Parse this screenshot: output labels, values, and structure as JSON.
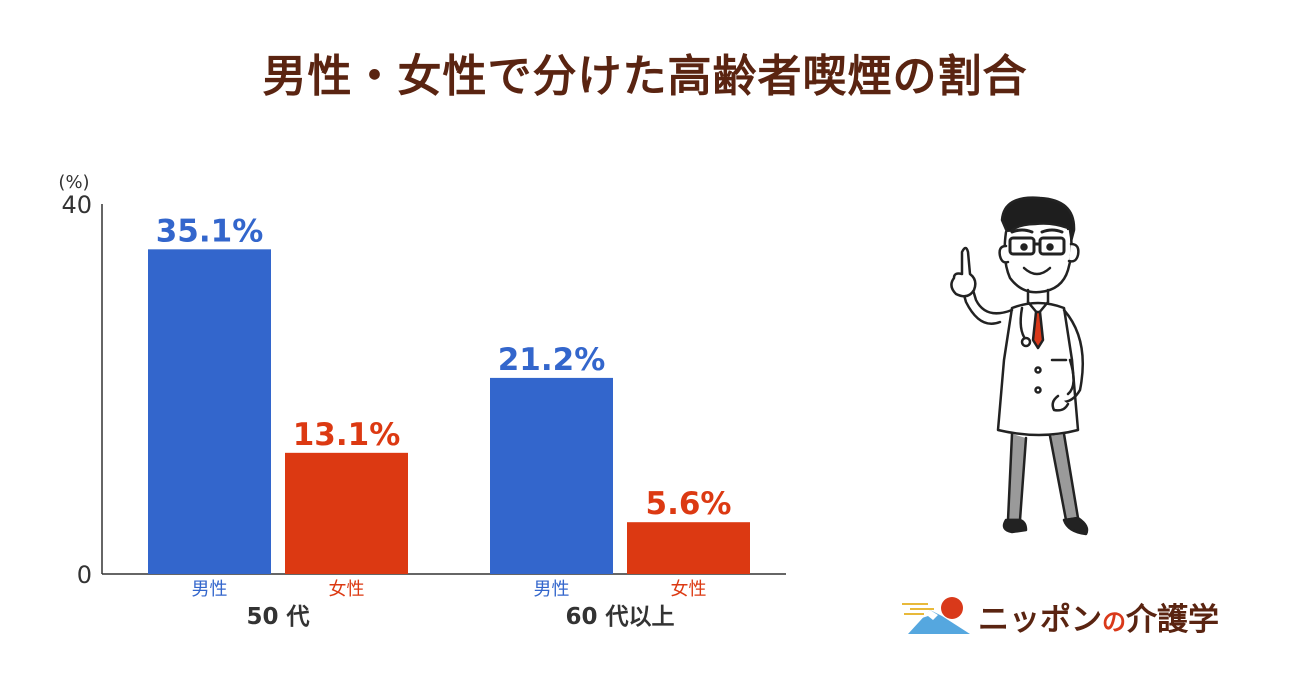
{
  "title": "男性・女性で分けた高齢者喫煙の割合",
  "chart_data": {
    "type": "bar",
    "unit_label": "(%)",
    "ylim": [
      0,
      40
    ],
    "yticks": [
      "0",
      "40"
    ],
    "groups": [
      {
        "label": "50 代",
        "bars": [
          {
            "label": "男性",
            "value": 35.1,
            "value_label": "35.1%",
            "color": "#3366cc"
          },
          {
            "label": "女性",
            "value": 13.1,
            "value_label": "13.1%",
            "color": "#dc3912"
          }
        ]
      },
      {
        "label": "60 代以上",
        "bars": [
          {
            "label": "男性",
            "value": 21.2,
            "value_label": "21.2%",
            "color": "#3366cc"
          },
          {
            "label": "女性",
            "value": 5.6,
            "value_label": "5.6%",
            "color": "#dc3912"
          }
        ]
      }
    ],
    "grid": false,
    "legend": "none"
  },
  "brand": {
    "name_main": "ニッポン",
    "name_no": "の",
    "name_tail": "介護学"
  },
  "colors": {
    "title": "#5a2411",
    "male": "#3366cc",
    "female": "#dc3912",
    "axis": "#333333"
  },
  "icons": {
    "doctor": "doctor-illustration",
    "logo": "mount-fuji-sun-logo"
  }
}
